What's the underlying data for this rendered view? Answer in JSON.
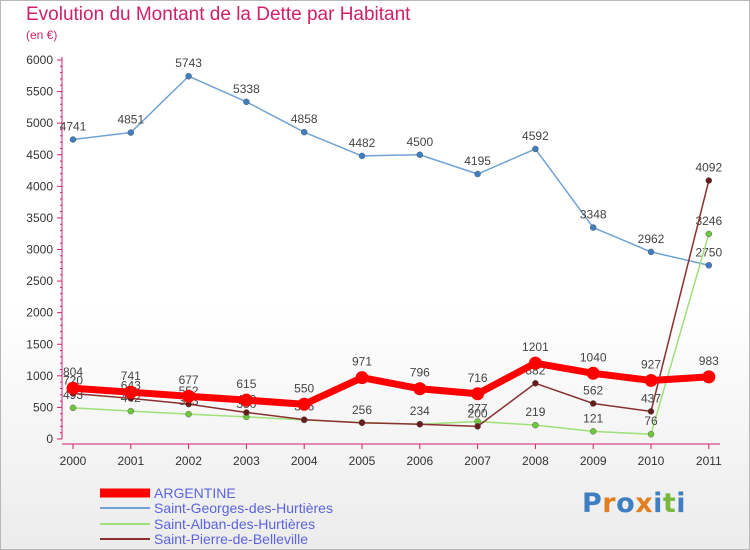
{
  "title": "Evolution du Montant de la Dette par Habitant",
  "subtitle": "(en €)",
  "brand": "Proxiti",
  "chart_data": {
    "type": "line",
    "x": [
      "2000",
      "2001",
      "2002",
      "2003",
      "2004",
      "2005",
      "2006",
      "2007",
      "2008",
      "2009",
      "2010",
      "2011"
    ],
    "ylim": [
      0,
      6000
    ],
    "yticks": [
      0,
      500,
      1000,
      1500,
      2000,
      2500,
      3000,
      3500,
      4000,
      4500,
      5000,
      5500,
      6000
    ],
    "grid": false,
    "legend": "bottom-left",
    "series": [
      {
        "name": "Saint-Georges-des-Hurtières",
        "color": "#6fa3d4",
        "marker": "#3f7fc0",
        "values": [
          4741,
          4851,
          5743,
          5338,
          4858,
          4482,
          4500,
          4195,
          4592,
          3348,
          2962,
          2750
        ],
        "labels": [
          "4741",
          "4851",
          "5743",
          "5338",
          "4858",
          "4482",
          "4500",
          "4195",
          "4592",
          "3348",
          "2962",
          "2750"
        ]
      },
      {
        "name": "Saint-Alban-des-Hurtières",
        "color": "#9fe07a",
        "marker": "#6fc83c",
        "values": [
          493,
          442,
          393,
          350,
          301,
          262,
          234,
          277,
          219,
          121,
          76,
          3246
        ],
        "labels": [
          "493",
          "442",
          "393",
          "350",
          "",
          "",
          "",
          "277",
          "219",
          "121",
          "76",
          "3246"
        ]
      },
      {
        "name": "Saint-Pierre-de-Belleville",
        "color": "#8b3030",
        "marker": "#6a1c1c",
        "values": [
          720,
          643,
          552,
          420,
          306,
          256,
          234,
          200,
          882,
          562,
          437,
          4092
        ],
        "labels": [
          "720",
          "643",
          "552",
          "420",
          "306",
          "256",
          "234",
          "200",
          "882",
          "562",
          "437",
          "4092"
        ]
      },
      {
        "name": "ARGENTINE",
        "color": "#ff0000",
        "marker": "#ff0000",
        "values": [
          804,
          741,
          677,
          615,
          550,
          971,
          796,
          716,
          1201,
          1040,
          927,
          983
        ],
        "labels": [
          "804",
          "741",
          "677",
          "615",
          "550",
          "971",
          "796",
          "716",
          "1201",
          "1040",
          "927",
          "983"
        ]
      }
    ]
  }
}
